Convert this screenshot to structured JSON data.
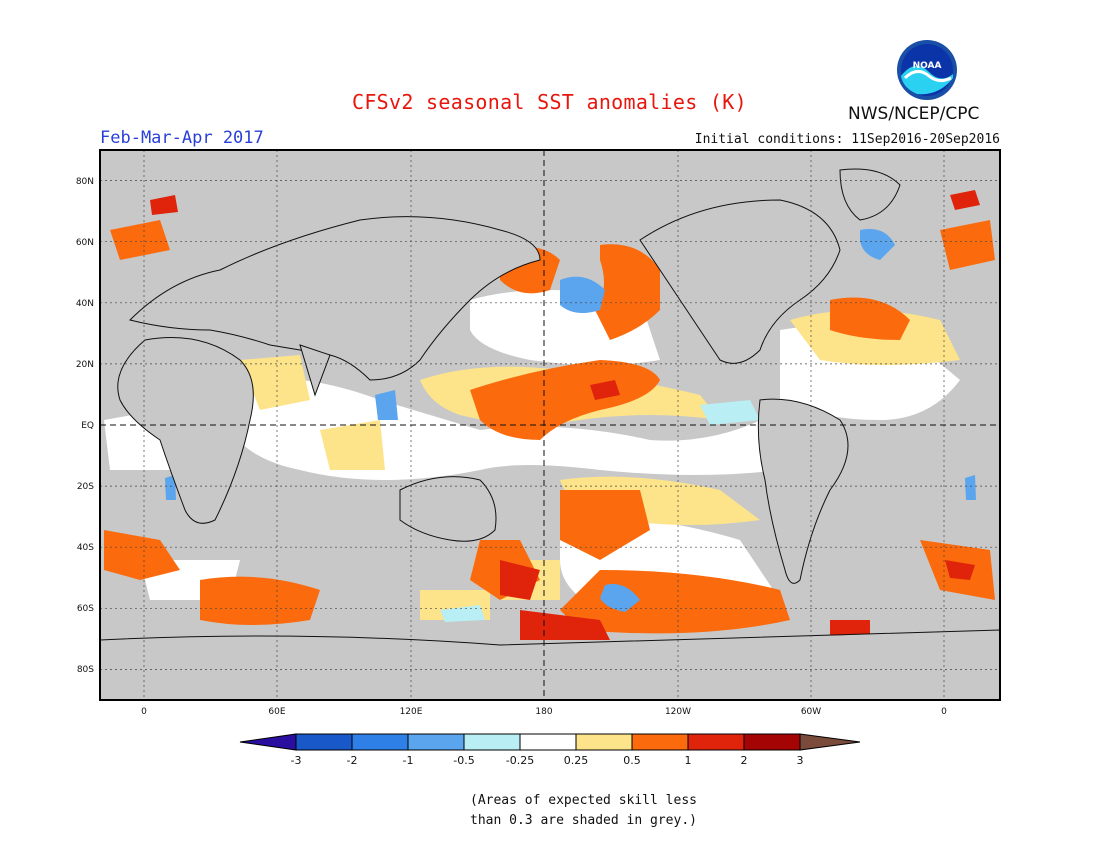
{
  "header": {
    "title": "CFSv2 seasonal SST anomalies (K)",
    "agency": "NWS/NCEP/CPC",
    "logo_text": "NOAA",
    "season": "Feb-Mar-Apr 2017",
    "initial_conditions": "Initial conditions: 11Sep2016-20Sep2016"
  },
  "map": {
    "lat_labels": [
      "80N",
      "60N",
      "40N",
      "20N",
      "EQ",
      "20S",
      "40S",
      "60S",
      "80S"
    ],
    "lon_labels": [
      "0",
      "60E",
      "120E",
      "180",
      "120W",
      "60W",
      "0"
    ],
    "mask_color": "#c8c8c8",
    "ocean_color": "#ffffff"
  },
  "colorbar": {
    "tick_labels": [
      "-3",
      "-2",
      "-1",
      "-0.5",
      "-0.25",
      "0.25",
      "0.5",
      "1",
      "2",
      "3"
    ],
    "colors": [
      "#2a0ea0",
      "#1858c8",
      "#2f80e6",
      "#5aa5ee",
      "#b8eef4",
      "#ffffff",
      "#fde48a",
      "#fb6a0c",
      "#e0240c",
      "#a50404",
      "#7a4b3a"
    ]
  },
  "footnote": {
    "line1": "(Areas of expected skill less",
    "line2": "than 0.3 are shaded in grey.)"
  }
}
